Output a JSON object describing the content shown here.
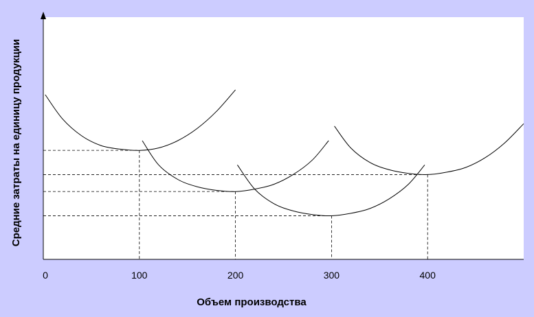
{
  "chart_data": {
    "type": "line",
    "title": "",
    "xlabel": "Объем производства",
    "ylabel": "Средние затраты на единицу продукции",
    "x_ticks": [
      "0",
      "100",
      "200",
      "300",
      "400"
    ],
    "xlim": [
      0,
      500
    ],
    "y_ticks": [],
    "grid": false,
    "legend": "none",
    "colors": {
      "background": "#ccccff",
      "plot_area": "#ffffff",
      "line": "#000000"
    },
    "series": [
      {
        "x": [
          2,
          20,
          40,
          60,
          80,
          100,
          120,
          140,
          160,
          180,
          200
        ],
        "y": [
          68,
          58,
          51,
          47,
          45.5,
          45,
          46,
          49,
          54,
          61,
          70
        ]
      },
      {
        "x": [
          103,
          120,
          140,
          160,
          180,
          200,
          220,
          240,
          260,
          280,
          297
        ],
        "y": [
          49,
          39,
          33,
          30,
          28.5,
          28,
          29,
          31,
          35,
          41,
          49
        ]
      },
      {
        "x": [
          202,
          220,
          240,
          260,
          280,
          300,
          320,
          340,
          360,
          380,
          397
        ],
        "y": [
          39,
          29,
          23,
          20,
          18.5,
          18,
          19,
          21,
          25,
          31,
          39
        ]
      },
      {
        "x": [
          303,
          320,
          340,
          360,
          380,
          400,
          420,
          440,
          460,
          480,
          500
        ],
        "y": [
          55,
          46,
          40,
          37,
          35.5,
          35,
          36,
          38,
          42,
          48,
          56
        ]
      }
    ],
    "reference_lines": [
      {
        "x": 100,
        "y": 45
      },
      {
        "x": 200,
        "y": 28
      },
      {
        "x": 300,
        "y": 18
      },
      {
        "x": 400,
        "y": 35
      }
    ]
  }
}
